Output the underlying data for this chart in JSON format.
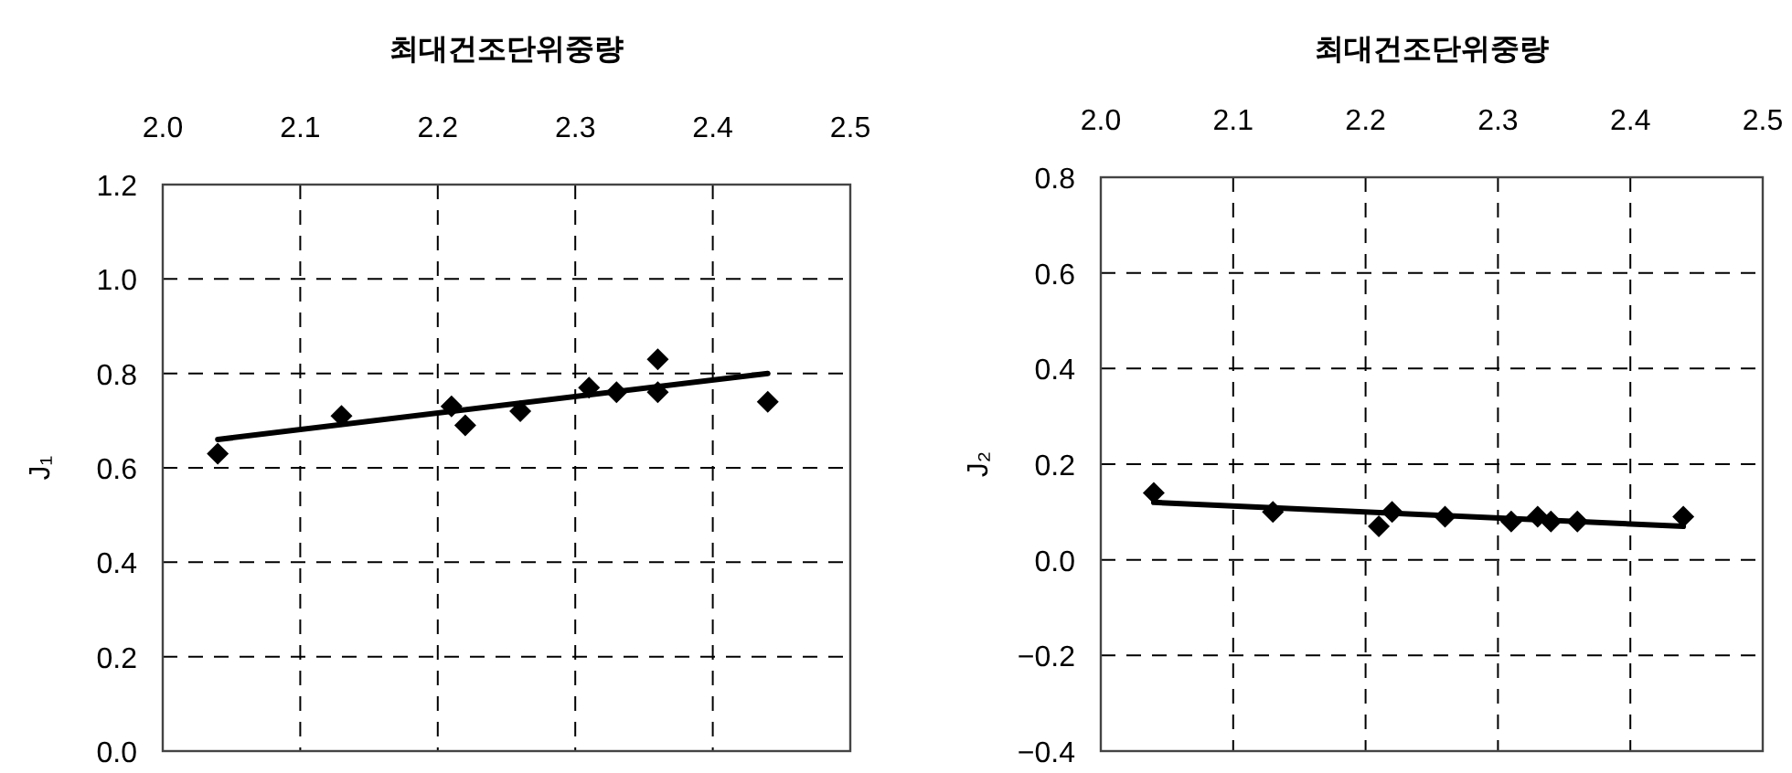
{
  "chart_data": [
    {
      "type": "scatter",
      "xlabel": "최대건조단위중량",
      "ylabel": "J₁",
      "xlim": [
        2.0,
        2.5
      ],
      "xticks": [
        {
          "value": 2.0,
          "label": "2.0"
        },
        2.1,
        2.2,
        2.3,
        2.4,
        2.5
      ],
      "ylim": [
        0,
        1.2
      ],
      "yticks": [
        {
          "value": 0,
          "label": "0.0"
        },
        0.2,
        0.4,
        0.6,
        0.8,
        {
          "value": 1.0,
          "label": "1.0"
        },
        1.2
      ],
      "grid": true,
      "marker": "diamond",
      "series": [
        {
          "color": "#000000",
          "x": [
            2.04,
            2.13,
            2.21,
            2.22,
            2.26,
            2.31,
            2.33,
            2.36,
            2.36,
            2.44
          ],
          "values": [
            0.63,
            0.71,
            0.73,
            0.69,
            0.72,
            0.77,
            0.76,
            0.83,
            0.76,
            0.74
          ]
        },
        {
          "type": "line",
          "color": "#000000",
          "marker": "none",
          "x": [
            2.04,
            2.44
          ],
          "values": [
            0.66,
            0.8
          ]
        }
      ]
    },
    {
      "type": "scatter",
      "xlabel": "최대건조단위중량",
      "ylabel": "J₂",
      "xlim": [
        2.0,
        2.5
      ],
      "xticks": [
        {
          "value": 2.0,
          "label": "2.0"
        },
        2.1,
        2.2,
        2.3,
        2.4,
        2.5
      ],
      "ylim": [
        -0.4,
        0.8
      ],
      "yticks": [
        {
          "value": -0.4,
          "label": "−0.4"
        },
        {
          "value": -0.2,
          "label": "−0.2"
        },
        {
          "value": 0,
          "label": "0.0"
        },
        0.2,
        0.4,
        0.6,
        0.8
      ],
      "grid": true,
      "marker": "diamond",
      "series": [
        {
          "color": "#000000",
          "x": [
            2.04,
            2.13,
            2.21,
            2.22,
            2.26,
            2.31,
            2.33,
            2.34,
            2.36,
            2.44
          ],
          "values": [
            0.14,
            0.1,
            0.07,
            0.1,
            0.09,
            0.08,
            0.09,
            0.08,
            0.08,
            0.09
          ]
        },
        {
          "type": "line",
          "color": "#000000",
          "marker": "none",
          "x": [
            2.04,
            2.44
          ],
          "values": [
            0.12,
            0.07
          ]
        }
      ]
    }
  ]
}
